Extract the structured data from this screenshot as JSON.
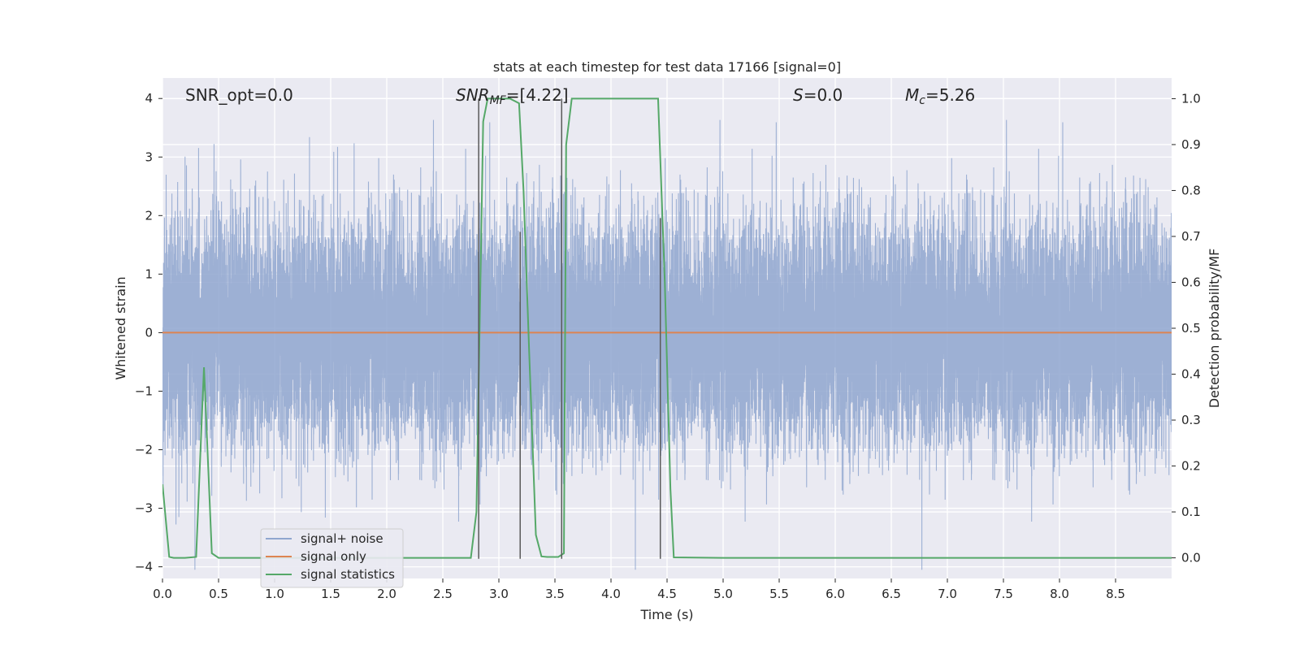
{
  "chart_data": {
    "type": "line",
    "title": "stats at each timestep for test data 17166 [signal=0]",
    "xlabel": "Time (s)",
    "ylabel": "Whitened strain",
    "y2label": "Detection probability/MF",
    "xlim": [
      0.0,
      9.0
    ],
    "ylim": [
      -4.2,
      4.35
    ],
    "y2lim": [
      -0.045,
      1.045
    ],
    "xticks": [
      0.0,
      0.5,
      1.0,
      1.5,
      2.0,
      2.5,
      3.0,
      3.5,
      4.0,
      4.5,
      5.0,
      5.5,
      6.0,
      6.5,
      7.0,
      7.5,
      8.0,
      8.5
    ],
    "xtick_labels": [
      "0.0",
      "0.5",
      "1.0",
      "1.5",
      "2.0",
      "2.5",
      "3.0",
      "3.5",
      "4.0",
      "4.5",
      "5.0",
      "5.5",
      "6.0",
      "6.5",
      "7.0",
      "7.5",
      "8.0",
      "8.5"
    ],
    "yticks": [
      -4,
      -3,
      -2,
      -1,
      0,
      1,
      2,
      3,
      4
    ],
    "ytick_labels": [
      "−4",
      "−3",
      "−2",
      "−1",
      "0",
      "1",
      "2",
      "3",
      "4"
    ],
    "y2ticks": [
      0.0,
      0.1,
      0.2,
      0.3,
      0.4,
      0.5,
      0.6,
      0.7,
      0.8,
      0.9,
      1.0
    ],
    "y2tick_labels": [
      "0.0",
      "0.1",
      "0.2",
      "0.3",
      "0.4",
      "0.5",
      "0.6",
      "0.7",
      "0.8",
      "0.9",
      "1.0"
    ],
    "grid": true,
    "legend_position": "lower-left",
    "annotations": [
      {
        "label": "SNR_opt=0.0",
        "x": 0.2
      },
      {
        "label": "SNR_MF=[4.22]",
        "x": 2.6
      },
      {
        "label": "S=0.0",
        "x": 5.6
      },
      {
        "label": "M_c=5.26",
        "x": 6.6
      }
    ],
    "series": [
      {
        "name": "signal+ noise",
        "axis": "left",
        "color": "#8fa6cf",
        "style": "noise",
        "x_range": [
          0.0,
          9.0
        ],
        "sample_rate": 2048,
        "std": 0.95
      },
      {
        "name": "signal only",
        "axis": "left",
        "color": "#dd8452",
        "x": [
          0.0,
          9.0
        ],
        "values": [
          0.0,
          0.0
        ]
      },
      {
        "name": "signal statistics",
        "axis": "right",
        "color": "#55a868",
        "x": [
          0.0,
          0.06,
          0.1,
          0.2,
          0.3,
          0.35,
          0.37,
          0.39,
          0.44,
          0.5,
          1.0,
          2.0,
          2.75,
          2.8,
          2.86,
          2.9,
          3.0,
          3.1,
          3.18,
          3.22,
          3.27,
          3.33,
          3.38,
          3.43,
          3.5,
          3.53,
          3.58,
          3.6,
          3.65,
          4.0,
          4.3,
          4.42,
          4.48,
          4.53,
          4.56,
          5.0,
          6.0,
          7.0,
          8.0,
          9.0
        ],
        "values": [
          0.16,
          0.002,
          0.0,
          0.0,
          0.002,
          0.3,
          0.415,
          0.3,
          0.01,
          0.0,
          0.0,
          0.0,
          0.0,
          0.1,
          0.95,
          1.0,
          1.0,
          1.0,
          0.99,
          0.8,
          0.45,
          0.05,
          0.003,
          0.002,
          0.002,
          0.002,
          0.01,
          0.9,
          1.0,
          1.0,
          1.0,
          1.0,
          0.6,
          0.15,
          0.001,
          0.0,
          0.0,
          0.0,
          0.0,
          0.0
        ]
      }
    ],
    "vlines": {
      "color": "#5a5a5a",
      "x": [
        2.82,
        3.19,
        3.56,
        4.44
      ],
      "ymin": -0.002,
      "ymax": [
        1.0,
        0.71,
        1.0,
        0.74
      ]
    }
  }
}
